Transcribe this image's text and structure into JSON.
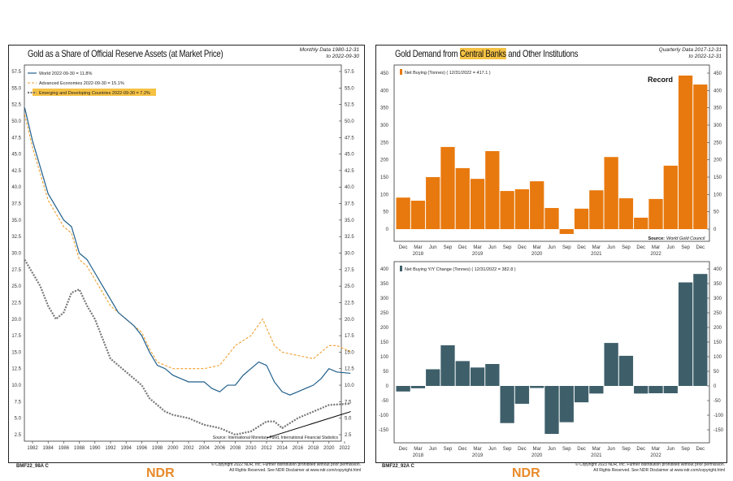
{
  "left": {
    "title": "Gold as a Share of Official Reserve Assets (at Market Price)",
    "meta": "Monthly Data 1980-12-31 to 2022-09-30",
    "code": "BMF22_98A C",
    "copyright1": "© Copyright 2022 NDR, Inc. Further distribution prohibited without prior permission.",
    "copyright2": "All Rights Reserved. See NDR Disclaimer at www.ndr.com/copyright.html",
    "logo": "NDR"
  },
  "right": {
    "title_pre": "Gold Demand from ",
    "title_hl": "Central Banks",
    "title_post": " and Other Institutions",
    "meta": "Quarterly Data 2017-12-31 to 2022-12-31",
    "code": "BMF22_92A C",
    "copyright1": "© Copyright 2023 NDR, Inc. Further distribution prohibited without prior permission.",
    "copyright2": "All Rights Reserved. See NDR Disclaimer at www.ndr.com/copyright.html",
    "logo": "NDR"
  },
  "chart_data": [
    {
      "type": "line",
      "title": "Gold as a Share of Official Reserve Assets (at Market Price)",
      "ylim": [
        2.5,
        57.5
      ],
      "yticks": [
        2.5,
        5,
        7.5,
        10,
        12.5,
        15,
        17.5,
        20,
        22.5,
        25,
        27.5,
        30,
        32.5,
        35,
        37.5,
        40,
        42.5,
        45,
        47.5,
        50,
        52.5,
        55,
        57.5
      ],
      "xticks": [
        "1982",
        "1984",
        "1986",
        "1988",
        "1990",
        "1992",
        "1994",
        "1996",
        "1998",
        "2000",
        "2002",
        "2004",
        "2006",
        "2008",
        "2010",
        "2012",
        "2014",
        "2016",
        "2018",
        "2020",
        "2022"
      ],
      "source": "Source: International Monetary Fund, International Financial Statistics",
      "legend_position": "top-left",
      "series": [
        {
          "name": "World 2022-09-30 = 11.8%",
          "color": "#1f5f8b",
          "style": "solid",
          "points": [
            [
              1981,
              52
            ],
            [
              1982,
              47
            ],
            [
              1983,
              43
            ],
            [
              1984,
              39
            ],
            [
              1985,
              37
            ],
            [
              1986,
              35
            ],
            [
              1987,
              34
            ],
            [
              1988,
              30
            ],
            [
              1989,
              29
            ],
            [
              1990,
              27
            ],
            [
              1991,
              25
            ],
            [
              1992,
              23
            ],
            [
              1993,
              21
            ],
            [
              1994,
              20
            ],
            [
              1995,
              19
            ],
            [
              1996,
              17.5
            ],
            [
              1997,
              15
            ],
            [
              1998,
              13
            ],
            [
              1999,
              12.5
            ],
            [
              2000,
              11.5
            ],
            [
              2001,
              11
            ],
            [
              2002,
              10.5
            ],
            [
              2003,
              10.5
            ],
            [
              2004,
              10.5
            ],
            [
              2005,
              9.5
            ],
            [
              2006,
              9
            ],
            [
              2007,
              10
            ],
            [
              2008,
              10
            ],
            [
              2009,
              11.5
            ],
            [
              2010,
              12.5
            ],
            [
              2011,
              13.5
            ],
            [
              2012,
              13
            ],
            [
              2013,
              10.5
            ],
            [
              2014,
              9
            ],
            [
              2015,
              8.5
            ],
            [
              2016,
              9
            ],
            [
              2017,
              9.5
            ],
            [
              2018,
              10
            ],
            [
              2019,
              11
            ],
            [
              2020,
              12.5
            ],
            [
              2021,
              12
            ],
            [
              2022.75,
              11.8
            ]
          ]
        },
        {
          "name": "Advanced Economies 2022-09-30 = 15.1%",
          "color": "#f0a030",
          "style": "dashed",
          "points": [
            [
              1981,
              51
            ],
            [
              1982,
              46
            ],
            [
              1983,
              42
            ],
            [
              1984,
              38
            ],
            [
              1985,
              36
            ],
            [
              1986,
              34
            ],
            [
              1987,
              33
            ],
            [
              1988,
              29
            ],
            [
              1989,
              28
            ],
            [
              1990,
              26
            ],
            [
              1991,
              24
            ],
            [
              1992,
              22
            ],
            [
              1993,
              21
            ],
            [
              1994,
              20
            ],
            [
              1995,
              19
            ],
            [
              1996,
              18
            ],
            [
              1997,
              15.5
            ],
            [
              1998,
              13.5
            ],
            [
              1999,
              13
            ],
            [
              2000,
              12.5
            ],
            [
              2002,
              12.5
            ],
            [
              2004,
              12.5
            ],
            [
              2006,
              13
            ],
            [
              2008,
              16
            ],
            [
              2010,
              17.5
            ],
            [
              2011.5,
              20
            ],
            [
              2013,
              16
            ],
            [
              2014,
              15
            ],
            [
              2016,
              14.5
            ],
            [
              2018,
              14
            ],
            [
              2020,
              16
            ],
            [
              2021,
              16
            ],
            [
              2022.75,
              15.1
            ]
          ]
        },
        {
          "name": "Emerging and Developing Countries 2022-09-30 = 7.2%",
          "color": "#777777",
          "style": "dotted",
          "points": [
            [
              1981,
              29
            ],
            [
              1982,
              27
            ],
            [
              1983,
              25
            ],
            [
              1984,
              22
            ],
            [
              1985,
              20
            ],
            [
              1986,
              21
            ],
            [
              1987,
              24
            ],
            [
              1988,
              24.5
            ],
            [
              1989,
              22
            ],
            [
              1990,
              20
            ],
            [
              1991,
              17
            ],
            [
              1992,
              14
            ],
            [
              1993,
              13
            ],
            [
              1994,
              12
            ],
            [
              1995,
              11
            ],
            [
              1996,
              10
            ],
            [
              1997,
              8
            ],
            [
              1998,
              7
            ],
            [
              1999,
              6
            ],
            [
              2000,
              5.5
            ],
            [
              2002,
              5
            ],
            [
              2004,
              4
            ],
            [
              2006,
              3.5
            ],
            [
              2008,
              2.5
            ],
            [
              2010,
              3
            ],
            [
              2012,
              4.5
            ],
            [
              2013,
              4.5
            ],
            [
              2014,
              3.5
            ],
            [
              2016,
              5
            ],
            [
              2018,
              6
            ],
            [
              2020,
              7
            ],
            [
              2022.75,
              7.2
            ]
          ]
        }
      ],
      "trendline": [
        [
          2012,
          2
        ],
        [
          2022.8,
          6
        ]
      ]
    },
    {
      "type": "bar",
      "title": "Gold Demand from Central Banks and Other Institutions",
      "series": [
        {
          "name": "Net Buying (Tonnes) ( 12/31/2022 = 417.1 )",
          "color": "#e8790e",
          "values": [
            91,
            82,
            150,
            237,
            176,
            145,
            225,
            110,
            115,
            138,
            61,
            -14,
            59,
            112,
            208,
            89,
            33,
            87,
            183,
            443,
            417.1
          ]
        }
      ],
      "ylim": [
        -25,
        475
      ],
      "yticks": [
        0,
        50,
        100,
        150,
        200,
        250,
        300,
        350,
        400,
        450
      ],
      "annotation": "Record",
      "source": "Source:",
      "source_name": "World Gold Council"
    },
    {
      "type": "bar",
      "series": [
        {
          "name": "Net Buying Y/Y Change (Tonnes) ( 12/31/2022 = 382.8 )",
          "color": "#3e5f6a",
          "values": [
            -19,
            -8,
            57,
            139,
            85,
            63,
            75,
            -127,
            -61,
            -7,
            -164,
            -124,
            -56,
            -26,
            147,
            103,
            -26,
            -25,
            -25,
            354,
            382.8
          ]
        }
      ],
      "ylim": [
        -175,
        425
      ],
      "yticks": [
        -150,
        -100,
        -50,
        0,
        50,
        100,
        150,
        200,
        250,
        300,
        350,
        400
      ]
    }
  ],
  "quarters": [
    "Dec",
    "Mar",
    "Jun",
    "Sep",
    "Dec",
    "Mar",
    "Jun",
    "Sep",
    "Dec",
    "Mar",
    "Jun",
    "Sep",
    "Dec",
    "Mar",
    "Jun",
    "Sep",
    "Dec",
    "Mar",
    "Jun",
    "Sep",
    "Dec"
  ],
  "years": [
    [
      "2018",
      1
    ],
    [
      "2019",
      5
    ],
    [
      "2020",
      9
    ],
    [
      "2021",
      13
    ],
    [
      "2022",
      17
    ]
  ]
}
